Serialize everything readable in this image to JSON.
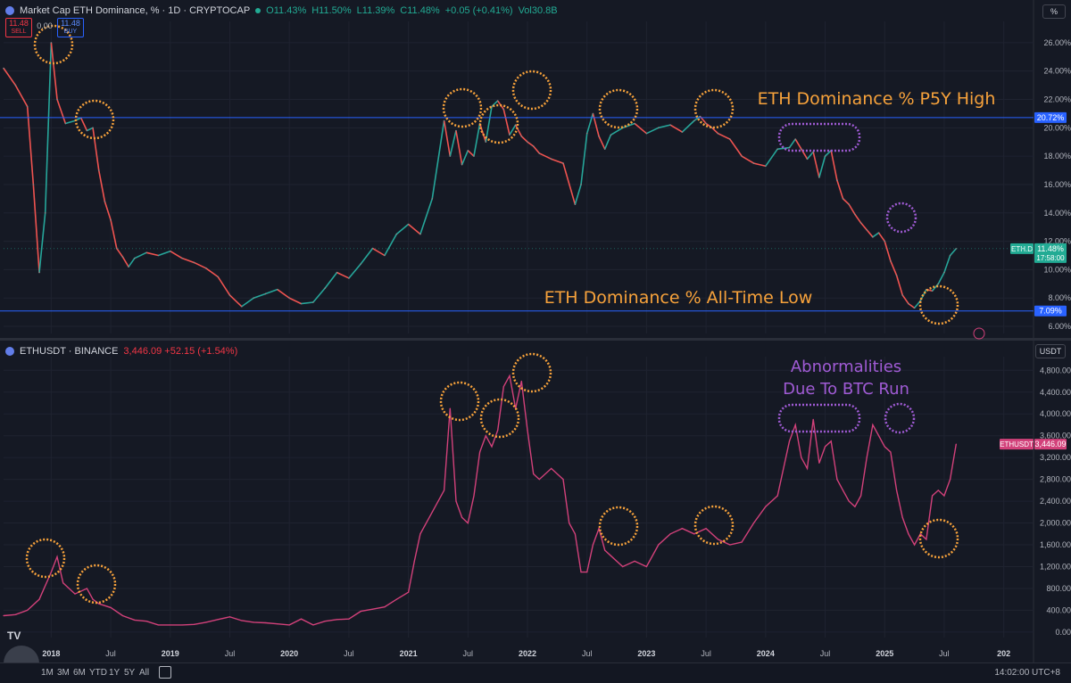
{
  "top_header": {
    "title": "Market Cap ETH Dominance, % · 1D · CRYPTOCAP",
    "o": "O11.43%",
    "h": "H11.50%",
    "l": "L11.39%",
    "c": "C11.48%",
    "chg": "+0.05 (+0.41%)",
    "vol": "Vol30.8B",
    "sell_price": "11.48",
    "sell_label": "SELL",
    "buy_price": "11.48",
    "buy_label": "BUY",
    "spread": "0.00"
  },
  "bottom_header": {
    "title": "ETHUSDT · BINANCE",
    "quote": "3,446.09 +52.15 (+1.54%)"
  },
  "top_axis_unit": "%",
  "bottom_axis_unit": "USDT",
  "range_buttons": [
    "1M",
    "3M",
    "6M",
    "YTD",
    "1Y",
    "5Y",
    "All"
  ],
  "clock": "14:02:00 UTC+8",
  "colors": {
    "bg": "#151924",
    "grid": "#1f2330",
    "candle_up": "#26a69a",
    "candle_down": "#ef5350",
    "price_line": "#d2417a",
    "hline": "#2962ff",
    "orange": "#f7a23b",
    "purple": "#a05bd5"
  },
  "chart_data": [
    {
      "type": "line",
      "title": "Market Cap ETH Dominance, %",
      "ylim": [
        5.5,
        27.5
      ],
      "yticks": [
        "6.00%",
        "8.00%",
        "10.00%",
        "12.00%",
        "14.00%",
        "16.00%",
        "18.00%",
        "20.00%",
        "22.00%",
        "24.00%",
        "26.00%"
      ],
      "ytick_values": [
        6,
        8,
        10,
        12,
        14,
        16,
        18,
        20,
        22,
        24,
        26
      ],
      "x_ticks": [
        "2018",
        "Jul",
        "2019",
        "Jul",
        "2020",
        "Jul",
        "2021",
        "Jul",
        "2022",
        "Jul",
        "2023",
        "Jul",
        "2024",
        "Jul",
        "2025",
        "Jul",
        "202"
      ],
      "x_tick_dates": [
        2018.0,
        2018.5,
        2019.0,
        2019.5,
        2020.0,
        2020.5,
        2021.0,
        2021.5,
        2022.0,
        2022.5,
        2023.0,
        2023.5,
        2024.0,
        2024.5,
        2025.0,
        2025.5,
        2026.0
      ],
      "series": [
        {
          "x": [
            2017.6,
            2017.7,
            2017.8,
            2017.85,
            2017.9,
            2017.95,
            2018.0,
            2018.05,
            2018.12,
            2018.2,
            2018.25,
            2018.3,
            2018.35,
            2018.4,
            2018.45,
            2018.5,
            2018.55,
            2018.6,
            2018.65,
            2018.7,
            2018.8,
            2018.9,
            2019.0,
            2019.1,
            2019.2,
            2019.3,
            2019.4,
            2019.5,
            2019.6,
            2019.7,
            2019.8,
            2019.9,
            2020.0,
            2020.1,
            2020.2,
            2020.3,
            2020.4,
            2020.5,
            2020.6,
            2020.7,
            2020.8,
            2020.9,
            2021.0,
            2021.1,
            2021.2,
            2021.3,
            2021.35,
            2021.4,
            2021.45,
            2021.5,
            2021.55,
            2021.6,
            2021.65,
            2021.7,
            2021.75,
            2021.8,
            2021.85,
            2021.9,
            2021.95,
            2022.0,
            2022.05,
            2022.1,
            2022.2,
            2022.3,
            2022.4,
            2022.45,
            2022.5,
            2022.55,
            2022.6,
            2022.65,
            2022.7,
            2022.8,
            2022.9,
            2023.0,
            2023.1,
            2023.2,
            2023.3,
            2023.4,
            2023.45,
            2023.5,
            2023.55,
            2023.6,
            2023.7,
            2023.8,
            2023.9,
            2024.0,
            2024.1,
            2024.2,
            2024.25,
            2024.3,
            2024.35,
            2024.4,
            2024.45,
            2024.5,
            2024.55,
            2024.6,
            2024.65,
            2024.7,
            2024.75,
            2024.8,
            2024.85,
            2024.9,
            2024.95,
            2025.0,
            2025.05,
            2025.1,
            2025.15,
            2025.2,
            2025.25,
            2025.3,
            2025.35,
            2025.4,
            2025.45,
            2025.5,
            2025.55,
            2025.6
          ],
          "y": [
            24.2,
            23.0,
            21.5,
            16.0,
            9.8,
            14.0,
            26.0,
            22.0,
            20.3,
            20.5,
            20.7,
            19.8,
            20.0,
            17.0,
            14.8,
            13.5,
            11.5,
            10.9,
            10.2,
            10.8,
            11.2,
            11.0,
            11.3,
            10.8,
            10.5,
            10.1,
            9.5,
            8.2,
            7.4,
            8.0,
            8.3,
            8.6,
            8.0,
            7.6,
            7.7,
            8.7,
            9.8,
            9.4,
            10.4,
            11.5,
            11.0,
            12.5,
            13.2,
            12.5,
            15.0,
            20.5,
            18.0,
            19.8,
            17.4,
            18.4,
            18.0,
            20.3,
            19.0,
            21.5,
            21.9,
            21.3,
            19.5,
            20.2,
            19.4,
            19.0,
            18.7,
            18.2,
            17.8,
            17.5,
            14.6,
            16.0,
            19.6,
            21.0,
            19.4,
            18.5,
            19.5,
            20.0,
            20.3,
            19.6,
            20.0,
            20.2,
            19.7,
            20.5,
            20.8,
            20.3,
            20.0,
            19.6,
            19.2,
            18.0,
            17.5,
            17.3,
            18.5,
            18.6,
            19.2,
            18.5,
            17.8,
            18.3,
            16.5,
            18.0,
            18.4,
            16.3,
            15.0,
            14.6,
            13.9,
            13.3,
            12.8,
            12.3,
            12.6,
            12.0,
            10.6,
            9.6,
            8.2,
            7.6,
            7.3,
            7.8,
            8.6,
            8.5,
            9.0,
            9.8,
            11.0,
            11.48
          ]
        }
      ],
      "hlines": [
        {
          "value": 20.72,
          "label": "20.72%"
        },
        {
          "value": 7.09,
          "label": "7.09%"
        }
      ],
      "annotations": [
        "ETH Dominance % P5Y High",
        "ETH Dominance % All-Time Low"
      ],
      "last_label": {
        "symbol": "ETH.D",
        "value": "11.48%",
        "countdown": "17:58:00"
      }
    },
    {
      "type": "line",
      "title": "ETHUSDT · BINANCE",
      "ylim": [
        -100,
        5050
      ],
      "yticks": [
        "0.00",
        "400.00",
        "800.00",
        "1,200.00",
        "1,600.00",
        "2,000.00",
        "2,400.00",
        "2,800.00",
        "3,200.00",
        "3,600.00",
        "4,000.00",
        "4,400.00",
        "4,800.00"
      ],
      "ytick_values": [
        0,
        400,
        800,
        1200,
        1600,
        2000,
        2400,
        2800,
        3200,
        3600,
        4000,
        4400,
        4800
      ],
      "series": [
        {
          "x": [
            2017.6,
            2017.7,
            2017.8,
            2017.9,
            2018.0,
            2018.05,
            2018.1,
            2018.2,
            2018.3,
            2018.35,
            2018.4,
            2018.5,
            2018.6,
            2018.7,
            2018.8,
            2018.9,
            2019.0,
            2019.1,
            2019.2,
            2019.3,
            2019.4,
            2019.5,
            2019.6,
            2019.7,
            2019.8,
            2019.9,
            2020.0,
            2020.1,
            2020.2,
            2020.3,
            2020.4,
            2020.5,
            2020.6,
            2020.7,
            2020.8,
            2020.9,
            2021.0,
            2021.05,
            2021.1,
            2021.2,
            2021.3,
            2021.35,
            2021.4,
            2021.45,
            2021.5,
            2021.55,
            2021.6,
            2021.65,
            2021.7,
            2021.75,
            2021.8,
            2021.85,
            2021.9,
            2021.95,
            2022.0,
            2022.05,
            2022.1,
            2022.2,
            2022.3,
            2022.35,
            2022.4,
            2022.45,
            2022.5,
            2022.55,
            2022.6,
            2022.65,
            2022.7,
            2022.8,
            2022.9,
            2023.0,
            2023.1,
            2023.2,
            2023.3,
            2023.4,
            2023.5,
            2023.6,
            2023.7,
            2023.8,
            2023.9,
            2024.0,
            2024.1,
            2024.2,
            2024.25,
            2024.3,
            2024.35,
            2024.4,
            2024.45,
            2024.5,
            2024.55,
            2024.6,
            2024.65,
            2024.7,
            2024.75,
            2024.8,
            2024.85,
            2024.9,
            2024.95,
            2025.0,
            2025.05,
            2025.1,
            2025.15,
            2025.2,
            2025.25,
            2025.3,
            2025.35,
            2025.4,
            2025.45,
            2025.5,
            2025.55,
            2025.6
          ],
          "y": [
            300,
            320,
            400,
            600,
            1100,
            1380,
            900,
            700,
            800,
            600,
            520,
            450,
            300,
            220,
            200,
            130,
            130,
            130,
            140,
            180,
            230,
            280,
            210,
            180,
            170,
            150,
            130,
            240,
            130,
            200,
            230,
            240,
            380,
            420,
            460,
            600,
            730,
            1300,
            1800,
            2200,
            2600,
            4100,
            2400,
            2100,
            2000,
            2500,
            3300,
            3600,
            3400,
            3700,
            4500,
            4700,
            4100,
            4600,
            3700,
            2900,
            2800,
            3000,
            2800,
            2000,
            1800,
            1100,
            1100,
            1600,
            1900,
            1500,
            1400,
            1200,
            1300,
            1200,
            1600,
            1800,
            1900,
            1800,
            1900,
            1700,
            1600,
            1650,
            2000,
            2300,
            2500,
            3500,
            3800,
            3200,
            3000,
            3900,
            3100,
            3400,
            3500,
            2800,
            2600,
            2400,
            2300,
            2500,
            3200,
            3800,
            3600,
            3400,
            3300,
            2600,
            2100,
            1800,
            1600,
            1800,
            1700,
            2500,
            2600,
            2500,
            2800,
            3446
          ]
        }
      ],
      "annotations": [
        "Abnormalities",
        "Due To BTC Run"
      ],
      "last_label": {
        "symbol": "ETHUSDT",
        "value": "3,446.09"
      }
    }
  ]
}
